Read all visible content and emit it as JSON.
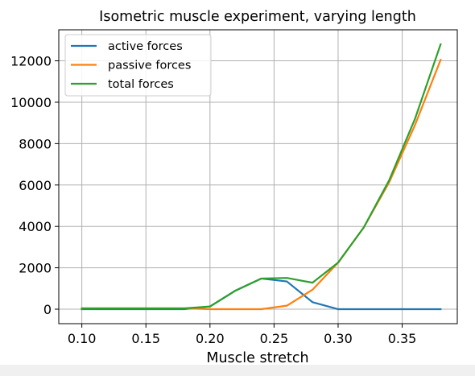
{
  "chart_data": {
    "type": "line",
    "title": "Isometric muscle experiment, varying length",
    "xlabel": "Muscle stretch",
    "ylabel": "",
    "xlim": [
      0.082,
      0.393
    ],
    "ylim": [
      -700,
      13500
    ],
    "xticks": [
      0.1,
      0.15,
      0.2,
      0.25,
      0.3,
      0.35
    ],
    "xtick_labels": [
      "0.10",
      "0.15",
      "0.20",
      "0.25",
      "0.30",
      "0.35"
    ],
    "yticks": [
      0,
      2000,
      4000,
      6000,
      8000,
      10000,
      12000
    ],
    "ytick_labels": [
      "0",
      "2000",
      "4000",
      "6000",
      "8000",
      "10000",
      "12000"
    ],
    "grid": true,
    "legend_position": "top-left",
    "x": [
      0.1,
      0.12,
      0.14,
      0.16,
      0.18,
      0.2,
      0.22,
      0.24,
      0.26,
      0.28,
      0.3,
      0.32,
      0.34,
      0.36,
      0.38
    ],
    "series": [
      {
        "name": "active forces",
        "color": "#1f77b4",
        "values": [
          0,
          0,
          0,
          0,
          0,
          130,
          900,
          1480,
          1340,
          340,
          0,
          0,
          0,
          0,
          0
        ]
      },
      {
        "name": "passive forces",
        "color": "#ff7f0e",
        "values": [
          40,
          40,
          40,
          40,
          40,
          0,
          0,
          0,
          170,
          940,
          2250,
          3950,
          6150,
          8900,
          12050
        ]
      },
      {
        "name": "total forces",
        "color": "#2ca02c",
        "values": [
          40,
          40,
          40,
          40,
          40,
          130,
          900,
          1480,
          1510,
          1280,
          2250,
          3950,
          6250,
          9200,
          12800
        ]
      }
    ]
  }
}
